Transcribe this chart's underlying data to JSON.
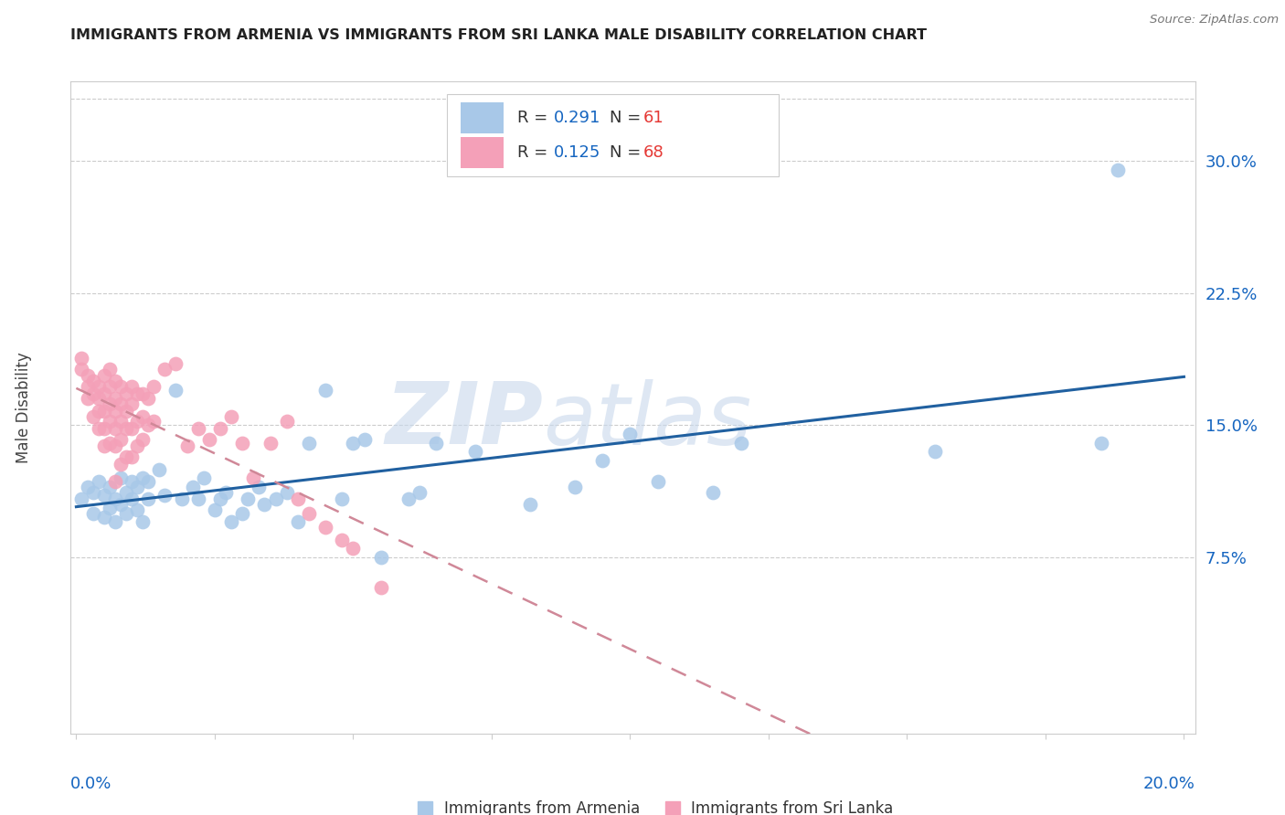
{
  "title": "IMMIGRANTS FROM ARMENIA VS IMMIGRANTS FROM SRI LANKA MALE DISABILITY CORRELATION CHART",
  "source": "Source: ZipAtlas.com",
  "ylabel": "Male Disability",
  "yticks": [
    0.075,
    0.15,
    0.225,
    0.3
  ],
  "ytick_labels": [
    "7.5%",
    "15.0%",
    "22.5%",
    "30.0%"
  ],
  "xlim": [
    -0.001,
    0.202
  ],
  "ylim": [
    -0.025,
    0.345
  ],
  "armenia_color": "#a8c8e8",
  "srilanka_color": "#f4a0b8",
  "armenia_line_color": "#2060a0",
  "srilanka_line_color": "#d08898",
  "r_color": "#1565c0",
  "n_color": "#e53935",
  "armenia_R": "0.291",
  "armenia_N": "61",
  "srilanka_R": "0.125",
  "srilanka_N": "68",
  "watermark_zip": "ZIP",
  "watermark_atlas": "atlas",
  "armenia_x": [
    0.001,
    0.002,
    0.003,
    0.003,
    0.004,
    0.005,
    0.005,
    0.006,
    0.006,
    0.007,
    0.007,
    0.008,
    0.008,
    0.009,
    0.009,
    0.01,
    0.01,
    0.011,
    0.011,
    0.012,
    0.012,
    0.013,
    0.013,
    0.015,
    0.016,
    0.018,
    0.019,
    0.021,
    0.022,
    0.023,
    0.025,
    0.026,
    0.027,
    0.028,
    0.03,
    0.031,
    0.033,
    0.034,
    0.036,
    0.038,
    0.04,
    0.042,
    0.045,
    0.048,
    0.05,
    0.052,
    0.055,
    0.06,
    0.062,
    0.065,
    0.072,
    0.082,
    0.09,
    0.095,
    0.1,
    0.105,
    0.115,
    0.12,
    0.155,
    0.185,
    0.188
  ],
  "armenia_y": [
    0.108,
    0.115,
    0.112,
    0.1,
    0.118,
    0.11,
    0.098,
    0.115,
    0.103,
    0.108,
    0.095,
    0.12,
    0.105,
    0.112,
    0.1,
    0.118,
    0.108,
    0.115,
    0.102,
    0.12,
    0.095,
    0.118,
    0.108,
    0.125,
    0.11,
    0.17,
    0.108,
    0.115,
    0.108,
    0.12,
    0.102,
    0.108,
    0.112,
    0.095,
    0.1,
    0.108,
    0.115,
    0.105,
    0.108,
    0.112,
    0.095,
    0.14,
    0.17,
    0.108,
    0.14,
    0.142,
    0.075,
    0.108,
    0.112,
    0.14,
    0.135,
    0.105,
    0.115,
    0.13,
    0.145,
    0.118,
    0.112,
    0.14,
    0.135,
    0.14,
    0.295
  ],
  "srilanka_x": [
    0.001,
    0.001,
    0.002,
    0.002,
    0.002,
    0.003,
    0.003,
    0.003,
    0.004,
    0.004,
    0.004,
    0.004,
    0.005,
    0.005,
    0.005,
    0.005,
    0.005,
    0.006,
    0.006,
    0.006,
    0.006,
    0.006,
    0.007,
    0.007,
    0.007,
    0.007,
    0.007,
    0.007,
    0.008,
    0.008,
    0.008,
    0.008,
    0.008,
    0.009,
    0.009,
    0.009,
    0.009,
    0.01,
    0.01,
    0.01,
    0.01,
    0.011,
    0.011,
    0.011,
    0.012,
    0.012,
    0.012,
    0.013,
    0.013,
    0.014,
    0.014,
    0.016,
    0.018,
    0.02,
    0.022,
    0.024,
    0.026,
    0.028,
    0.03,
    0.032,
    0.035,
    0.038,
    0.04,
    0.042,
    0.045,
    0.048,
    0.05,
    0.055
  ],
  "srilanka_y": [
    0.188,
    0.182,
    0.178,
    0.172,
    0.165,
    0.175,
    0.168,
    0.155,
    0.172,
    0.165,
    0.158,
    0.148,
    0.178,
    0.168,
    0.158,
    0.148,
    0.138,
    0.182,
    0.172,
    0.162,
    0.152,
    0.14,
    0.175,
    0.165,
    0.158,
    0.148,
    0.138,
    0.118,
    0.172,
    0.162,
    0.152,
    0.142,
    0.128,
    0.168,
    0.158,
    0.148,
    0.132,
    0.172,
    0.162,
    0.148,
    0.132,
    0.168,
    0.152,
    0.138,
    0.168,
    0.155,
    0.142,
    0.165,
    0.15,
    0.172,
    0.152,
    0.182,
    0.185,
    0.138,
    0.148,
    0.142,
    0.148,
    0.155,
    0.14,
    0.12,
    0.14,
    0.152,
    0.108,
    0.1,
    0.092,
    0.085,
    0.08,
    0.058
  ]
}
